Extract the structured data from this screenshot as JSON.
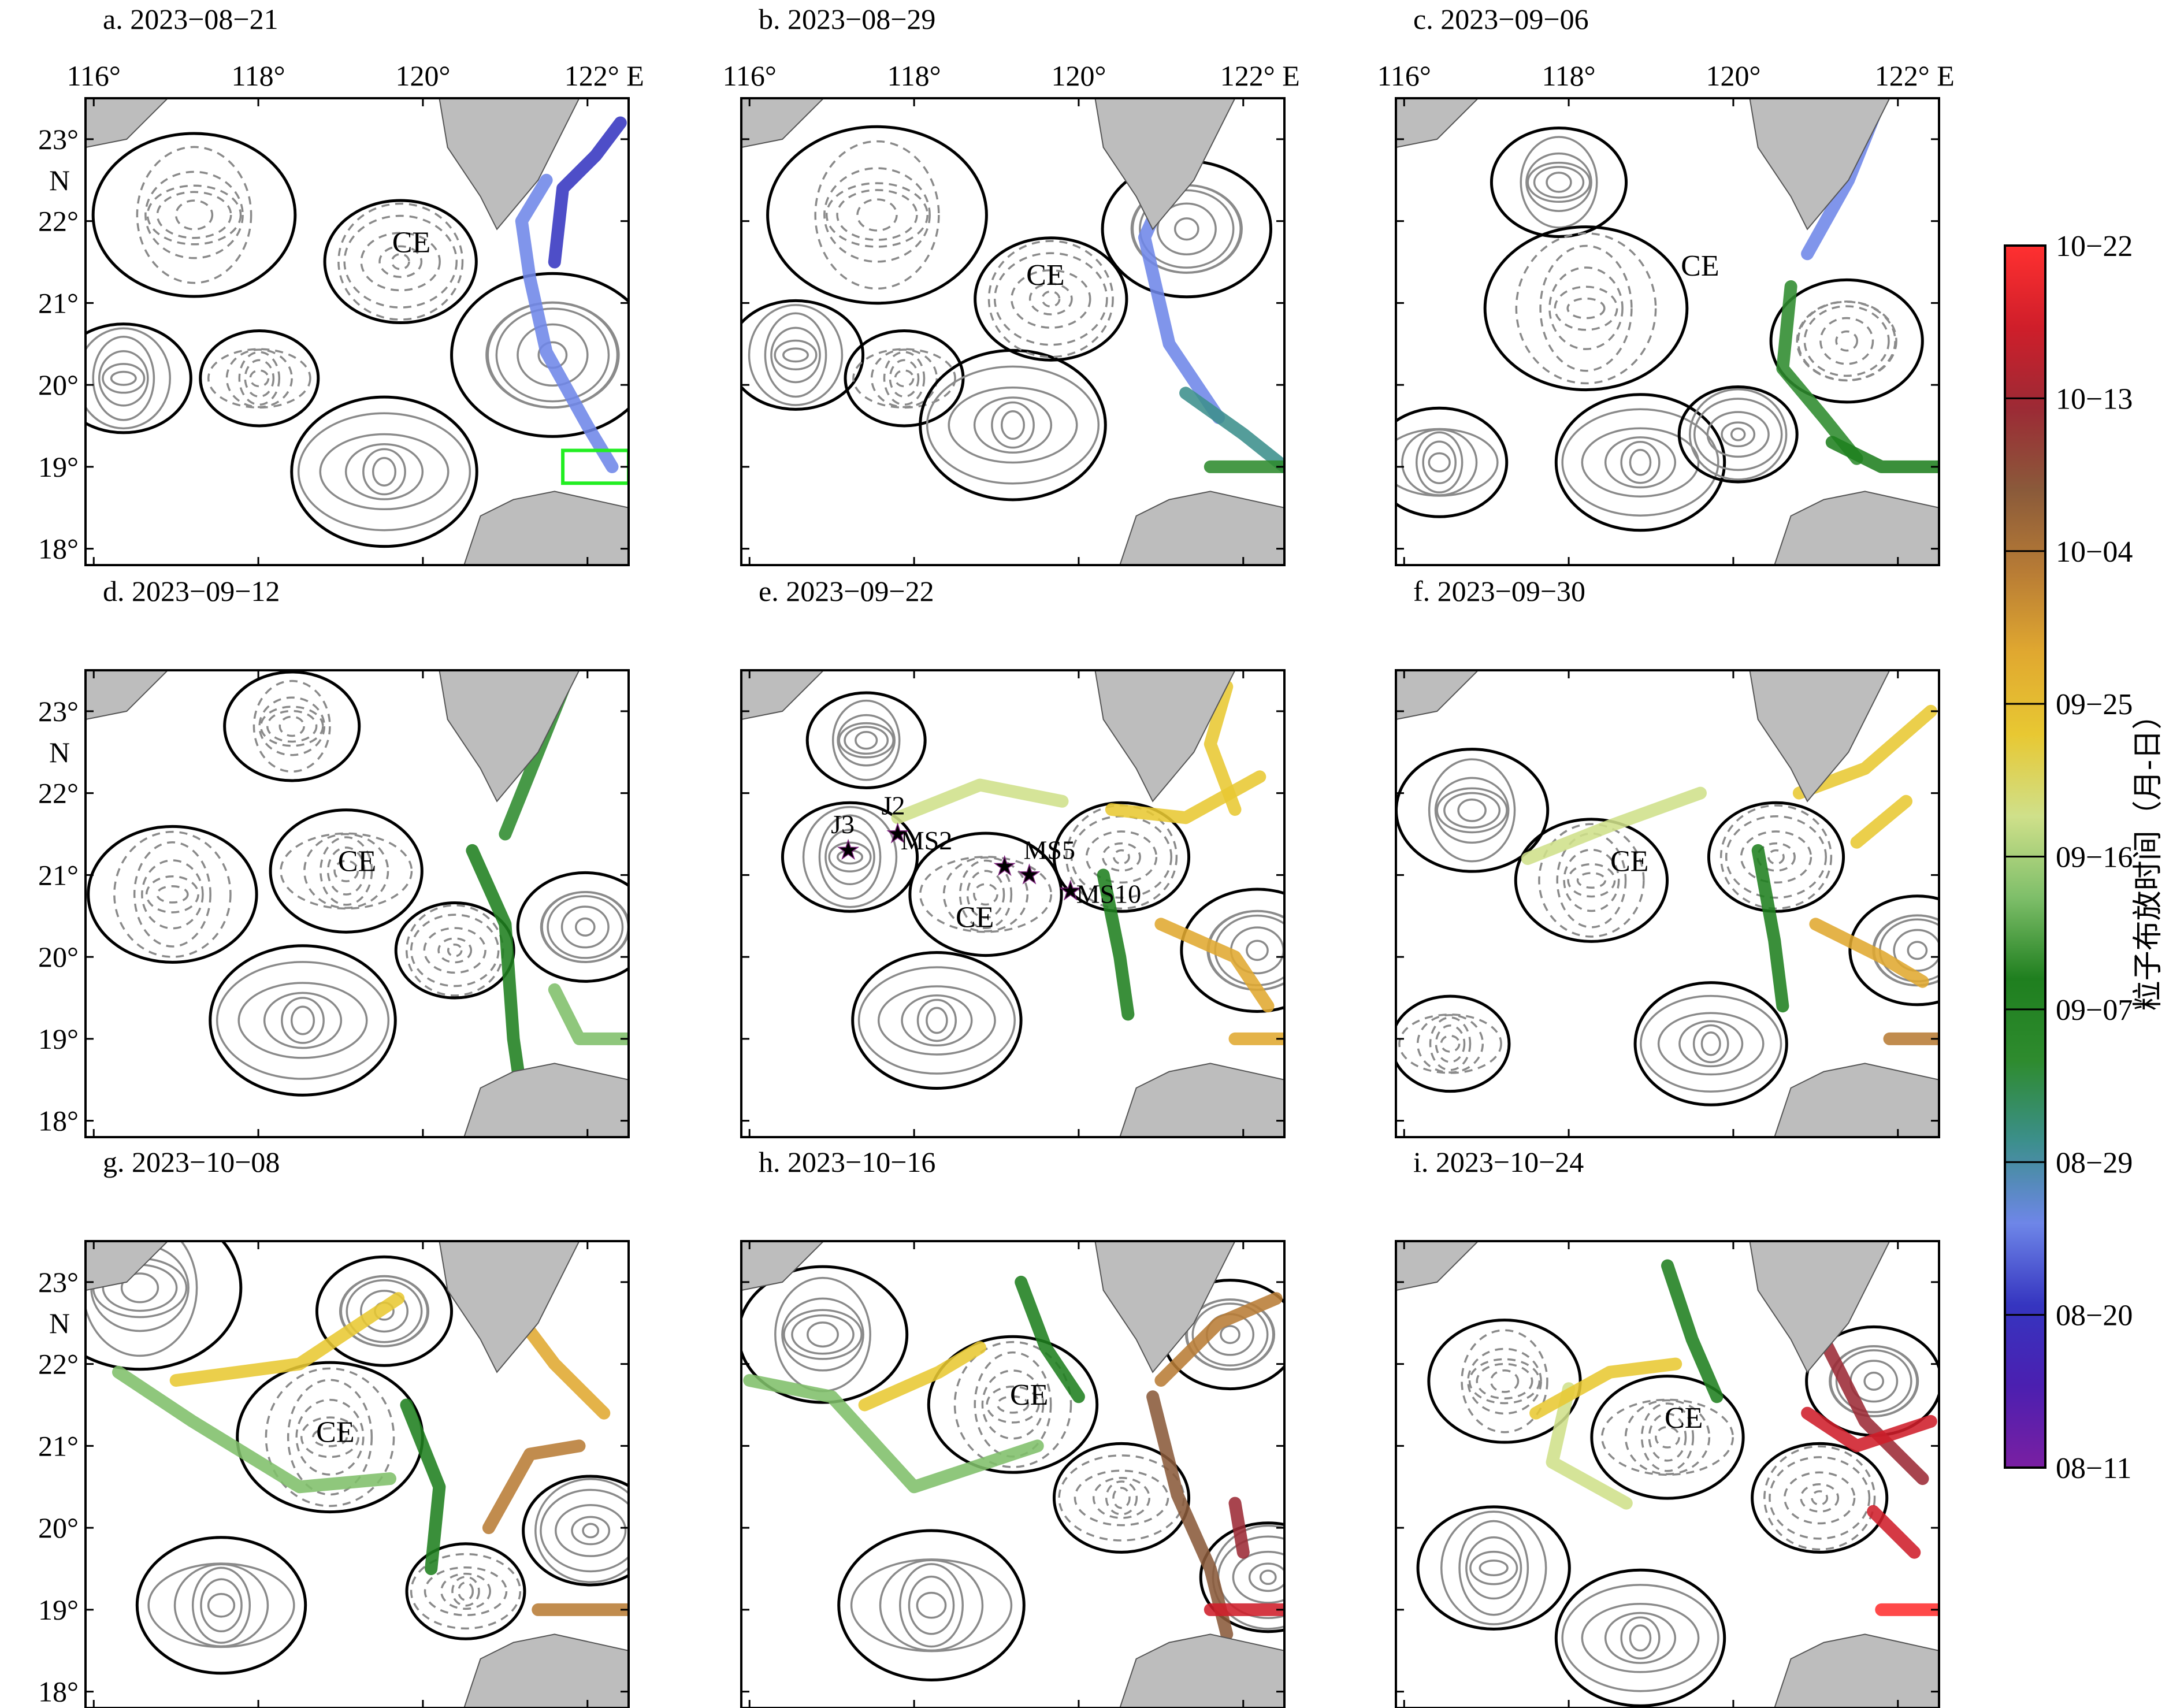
{
  "panels": [
    {
      "id": "a",
      "title": "a. 2023−08−21",
      "ce_label": "CE"
    },
    {
      "id": "b",
      "title": "b. 2023−08−29",
      "ce_label": "CE"
    },
    {
      "id": "c",
      "title": "c. 2023−09−06",
      "ce_label": "CE"
    },
    {
      "id": "d",
      "title": "d. 2023−09−12",
      "ce_label": "CE"
    },
    {
      "id": "e",
      "title": "e. 2023−09−22",
      "ce_label": "CE",
      "stations": [
        "J3",
        "J2",
        "MS2",
        "MS5",
        "MS10"
      ]
    },
    {
      "id": "f",
      "title": "f. 2023−09−30",
      "ce_label": "CE"
    },
    {
      "id": "g",
      "title": "g. 2023−10−08",
      "ce_label": "CE"
    },
    {
      "id": "h",
      "title": "h. 2023−10−16",
      "ce_label": "CE"
    },
    {
      "id": "i",
      "title": "i. 2023−10−24",
      "ce_label": "CE"
    }
  ],
  "axes": {
    "lon_ticks": [
      "116°",
      "118°",
      "120°",
      "122° E"
    ],
    "lat_ticks": [
      "23°",
      "22°",
      "21°",
      "20°",
      "19°",
      "18°"
    ],
    "lat_unit": "N",
    "lon_range": [
      115.9,
      122.5
    ],
    "lat_range": [
      17.8,
      23.5
    ]
  },
  "colorbar": {
    "title": "粒子布放时间（月-日）",
    "ticks": [
      "10−22",
      "10−13",
      "10−04",
      "09−25",
      "09−16",
      "09−07",
      "08−29",
      "08−20",
      "08−11"
    ],
    "colors": [
      "#7a1fa2",
      "#4b1fb0",
      "#3535c0",
      "#6e86e8",
      "#3c8f8c",
      "#2e8b2e",
      "#1f7f1f",
      "#7fbf6a",
      "#cfe08a",
      "#e8c832",
      "#e0a830",
      "#b87c35",
      "#8a5a3a",
      "#9c2a35",
      "#cf1e2a",
      "#ff3030"
    ]
  },
  "colors": {
    "land": "#bdbdbd",
    "contour_pos": "#8a8a8a",
    "contour_neg": "#8a8a8a",
    "zero_contour": "#000000",
    "release_box": "#22ee22",
    "station_star": "#ff33ff"
  }
}
